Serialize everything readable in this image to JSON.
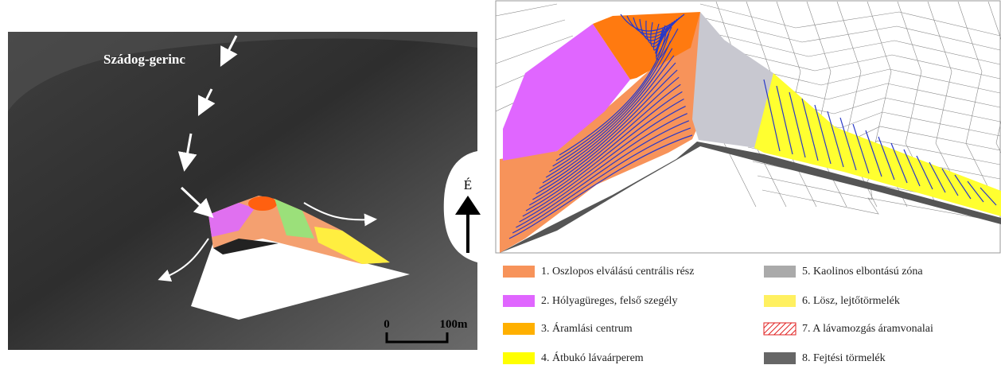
{
  "left_panel": {
    "ridge_label": "Szádog-gerinc",
    "north_label": "É",
    "scale_start": "0",
    "scale_end": "100m"
  },
  "legend": [
    "1. Oszlopos elválású centrális rész",
    "2. Hólyagüreges, felső szegély",
    "3. Áramlási centrum",
    "4. Átbukó lávaárperem",
    "5. Kaolinos elbontású zóna",
    "6. Lösz, lejtőtörmelék",
    "7. A lávamozgás áramvonalai",
    "8. Fejtési törmelék"
  ]
}
